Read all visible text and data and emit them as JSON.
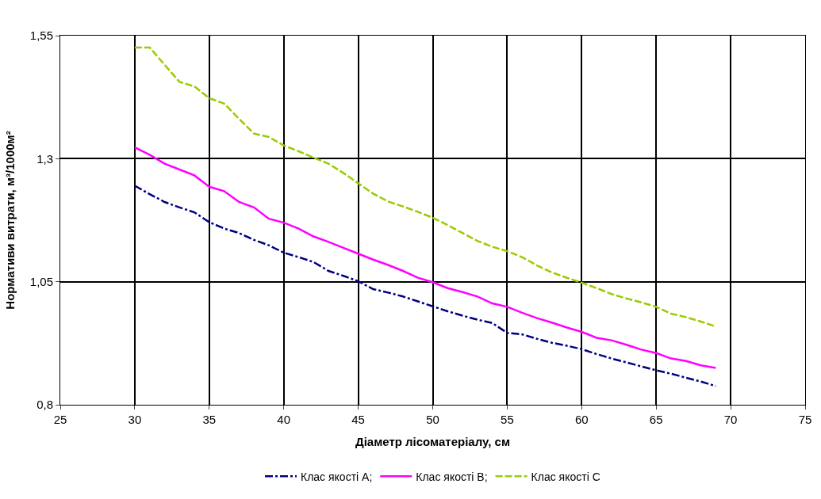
{
  "chart_data": {
    "type": "line",
    "xlabel": "Діаметр лісоматеріалу, см",
    "ylabel": "Нормативи витрати, м³/1000м²",
    "x": [
      30,
      31,
      32,
      33,
      34,
      35,
      36,
      37,
      38,
      39,
      40,
      41,
      42,
      43,
      44,
      45,
      46,
      47,
      48,
      49,
      50,
      51,
      52,
      53,
      54,
      55,
      56,
      57,
      58,
      59,
      60,
      61,
      62,
      63,
      64,
      65,
      66,
      67,
      68,
      69
    ],
    "series": [
      {
        "name": "Клас якості А;",
        "color": "#000080",
        "line_style": "dashdot",
        "values": [
          1.245,
          1.228,
          1.212,
          1.201,
          1.191,
          1.171,
          1.158,
          1.149,
          1.135,
          1.124,
          1.109,
          1.1,
          1.09,
          1.072,
          1.062,
          1.051,
          1.035,
          1.028,
          1.02,
          1.01,
          1.0,
          0.99,
          0.981,
          0.973,
          0.966,
          0.946,
          0.943,
          0.934,
          0.926,
          0.92,
          0.913,
          0.903,
          0.894,
          0.886,
          0.878,
          0.87,
          0.863,
          0.855,
          0.847,
          0.838
        ]
      },
      {
        "name": "Клас якості В;",
        "color": "#ff00ff",
        "line_style": "solid",
        "values": [
          1.323,
          1.308,
          1.29,
          1.278,
          1.266,
          1.243,
          1.234,
          1.212,
          1.201,
          1.178,
          1.17,
          1.158,
          1.142,
          1.131,
          1.119,
          1.107,
          1.095,
          1.084,
          1.072,
          1.058,
          1.049,
          1.037,
          1.029,
          1.02,
          1.006,
          0.999,
          0.987,
          0.976,
          0.967,
          0.957,
          0.948,
          0.936,
          0.931,
          0.922,
          0.912,
          0.905,
          0.894,
          0.889,
          0.88,
          0.875
        ]
      },
      {
        "name": "Клас якості С",
        "color": "#99cc00",
        "line_style": "dashed",
        "values": [
          1.526,
          1.526,
          1.491,
          1.456,
          1.447,
          1.423,
          1.412,
          1.381,
          1.351,
          1.344,
          1.327,
          1.315,
          1.302,
          1.29,
          1.271,
          1.25,
          1.229,
          1.213,
          1.203,
          1.192,
          1.18,
          1.165,
          1.149,
          1.133,
          1.121,
          1.112,
          1.1,
          1.083,
          1.069,
          1.058,
          1.048,
          1.037,
          1.025,
          1.016,
          1.008,
          0.999,
          0.985,
          0.978,
          0.969,
          0.959
        ]
      }
    ],
    "xlim": [
      25,
      75
    ],
    "xticks": [
      25,
      30,
      35,
      40,
      45,
      50,
      55,
      60,
      65,
      70,
      75
    ],
    "ylim": [
      0.8,
      1.55
    ],
    "yticks": [
      {
        "value": 0.8,
        "label": "0,8"
      },
      {
        "value": 1.05,
        "label": "1,05"
      },
      {
        "value": 1.3,
        "label": "1,3"
      },
      {
        "value": 1.55,
        "label": "1,55"
      }
    ],
    "grid": true,
    "legend": "bottom",
    "marker": "none"
  }
}
